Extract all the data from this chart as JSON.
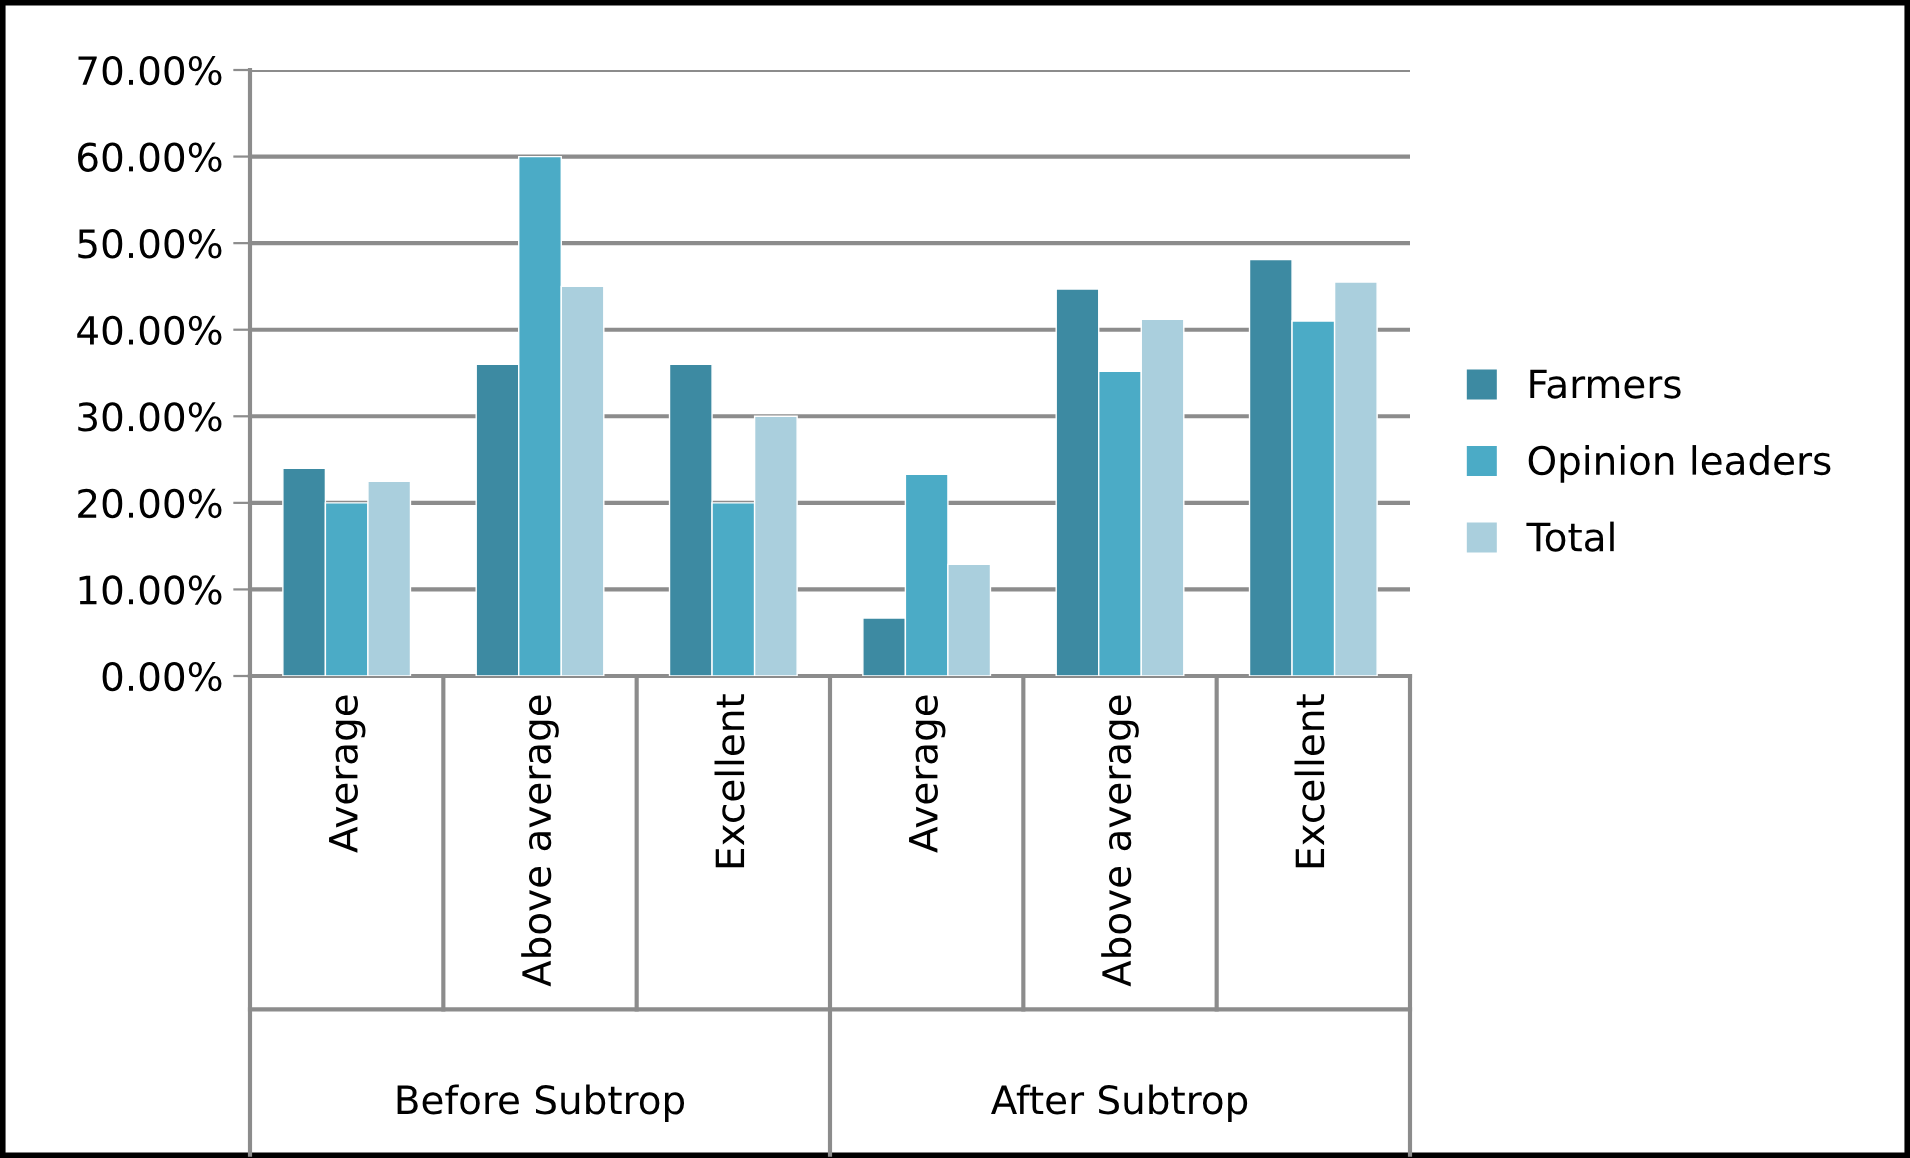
{
  "chart_data": {
    "type": "bar",
    "categories": [
      "Average",
      "Above average",
      "Excellent",
      "Average",
      "Above average",
      "Excellent"
    ],
    "series": [
      {
        "name": "Farmers",
        "color": "#3d8aa2",
        "values": [
          24,
          36,
          36,
          6.7,
          44.7,
          48.1
        ]
      },
      {
        "name": "Opinion leaders",
        "color": "#4babc6",
        "values": [
          20,
          60,
          20,
          23.3,
          35.2,
          41.0
        ]
      },
      {
        "name": "Total",
        "color": "#aacfdd",
        "values": [
          22.5,
          45,
          30,
          12.9,
          41.2,
          45.5
        ]
      }
    ],
    "ylim": [
      0,
      70
    ],
    "yticks": [
      {
        "value": 0,
        "label": "0.00%"
      },
      {
        "value": 10,
        "label": "10.00%"
      },
      {
        "value": 20,
        "label": "20.00%"
      },
      {
        "value": 30,
        "label": "30.00%"
      },
      {
        "value": 40,
        "label": "40.00%"
      },
      {
        "value": 50,
        "label": "50.00%"
      },
      {
        "value": 60,
        "label": "60.00%"
      },
      {
        "value": 70,
        "label": "70.00%"
      }
    ],
    "annotations": [
      "Before Subtrop",
      "After Subtrop"
    ],
    "grid": "y",
    "legend": "right"
  }
}
